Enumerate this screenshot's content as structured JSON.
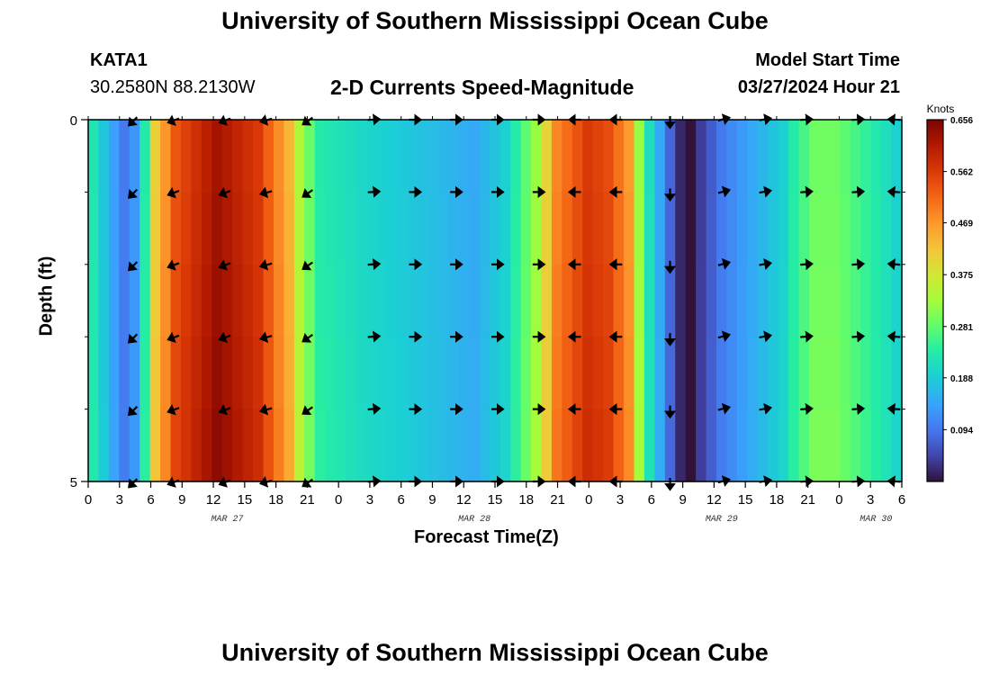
{
  "chart_data": {
    "type": "heatmap",
    "title": "University of Southern Mississippi Ocean Cube",
    "station": "KATA1",
    "location": "30.2580N  88.2130W",
    "subtitle": "2-D Currents Speed-Magnitude",
    "model_start_label": "Model Start Time",
    "model_start_value": "03/27/2024 Hour 21",
    "xlabel": "Forecast Time(Z)",
    "ylabel": "Depth (ft)",
    "y_ticks": [
      "0",
      "5"
    ],
    "ylim": [
      0,
      5
    ],
    "x_tick_labels": [
      "0",
      "3",
      "6",
      "9",
      "12",
      "15",
      "18",
      "21",
      "0",
      "3",
      "6",
      "9",
      "12",
      "15",
      "18",
      "21",
      "0",
      "3",
      "6",
      "9",
      "12",
      "15",
      "18",
      "21",
      "0",
      "3",
      "6"
    ],
    "date_labels": [
      {
        "label": "MAR 27",
        "hour_index": 13
      },
      {
        "label": "MAR 28",
        "hour_index": 37
      },
      {
        "label": "MAR 29",
        "hour_index": 61
      },
      {
        "label": "MAR 30",
        "hour_index": 76
      }
    ],
    "colorbar": {
      "unit": "Knots",
      "min": 0,
      "max": 0.656,
      "ticks": [
        "0.656",
        "0.562",
        "0.469",
        "0.375",
        "0.281",
        "0.188",
        "0.094"
      ]
    },
    "hours": 79,
    "speed_profile": [
      [
        0,
        0.23
      ],
      [
        2,
        0.14
      ],
      [
        3,
        0.1
      ],
      [
        4,
        0.13
      ],
      [
        5,
        0.24
      ],
      [
        6,
        0.42
      ],
      [
        8,
        0.55
      ],
      [
        12,
        0.64
      ],
      [
        16,
        0.58
      ],
      [
        19,
        0.45
      ],
      [
        20,
        0.35
      ],
      [
        22,
        0.24
      ],
      [
        26,
        0.21
      ],
      [
        32,
        0.18
      ],
      [
        37,
        0.15
      ],
      [
        40,
        0.2
      ],
      [
        43,
        0.33
      ],
      [
        45,
        0.5
      ],
      [
        48,
        0.58
      ],
      [
        50,
        0.56
      ],
      [
        52,
        0.48
      ],
      [
        53,
        0.33
      ],
      [
        54,
        0.22
      ],
      [
        56,
        0.08
      ],
      [
        57,
        0.02
      ],
      [
        58,
        0.0
      ],
      [
        59,
        0.04
      ],
      [
        61,
        0.1
      ],
      [
        64,
        0.15
      ],
      [
        67,
        0.2
      ],
      [
        68,
        0.24
      ],
      [
        70,
        0.3
      ],
      [
        72,
        0.3
      ],
      [
        74,
        0.27
      ],
      [
        77,
        0.22
      ],
      [
        78,
        0.2
      ]
    ],
    "arrows": {
      "hours": [
        4,
        8,
        13,
        17,
        21,
        27,
        31,
        35,
        39,
        43,
        47,
        51,
        56,
        61,
        65,
        69,
        74,
        78
      ],
      "directions_deg": [
        225,
        200,
        200,
        195,
        215,
        5,
        0,
        0,
        0,
        0,
        180,
        180,
        270,
        15,
        10,
        5,
        5,
        175
      ],
      "rows": [
        0,
        1,
        2,
        3,
        4,
        5
      ]
    }
  }
}
